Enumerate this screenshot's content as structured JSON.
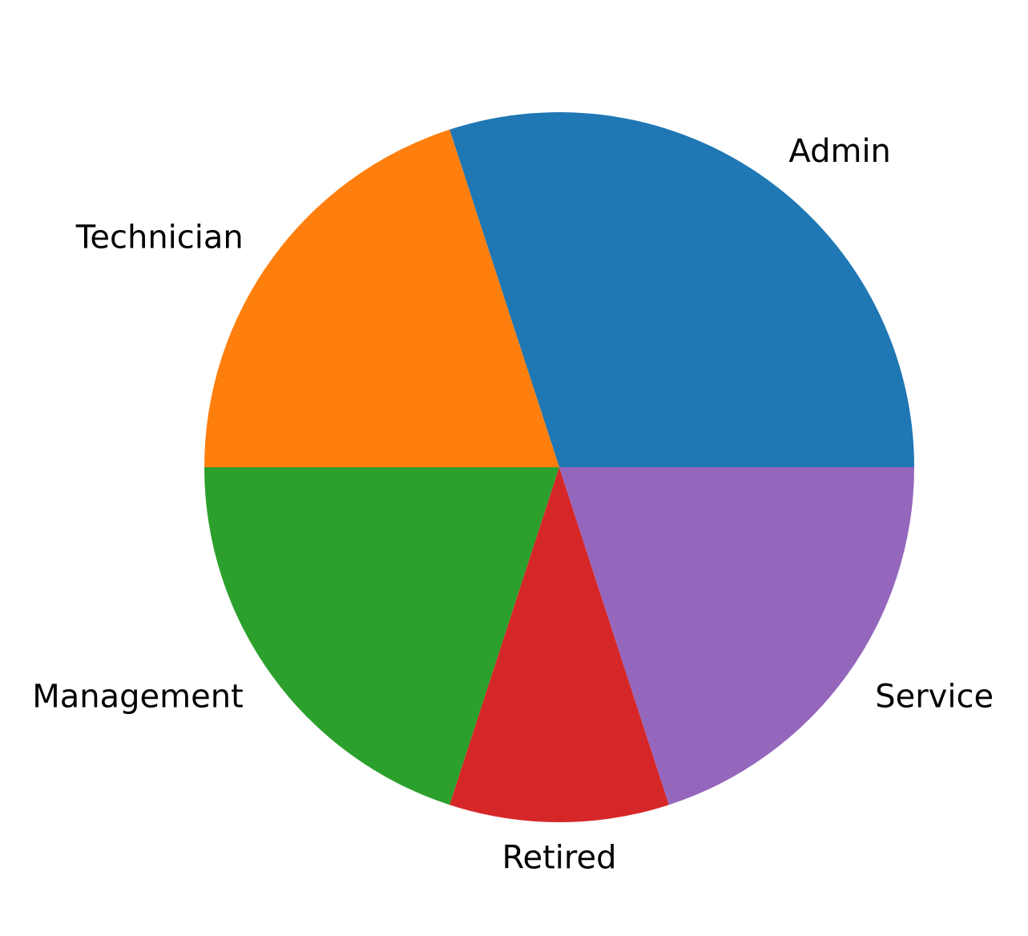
{
  "chart_data": {
    "type": "pie",
    "title": "",
    "start_angle_deg": 0,
    "direction": "counterclockwise",
    "slices": [
      {
        "label": "Admin",
        "value": 30,
        "color": "#1f77b4"
      },
      {
        "label": "Technician",
        "value": 20,
        "color": "#ff7f0e"
      },
      {
        "label": "Management",
        "value": 20,
        "color": "#2ca02c"
      },
      {
        "label": "Retired",
        "value": 10,
        "color": "#d62728"
      },
      {
        "label": "Service",
        "value": 20,
        "color": "#9467bd"
      }
    ]
  }
}
